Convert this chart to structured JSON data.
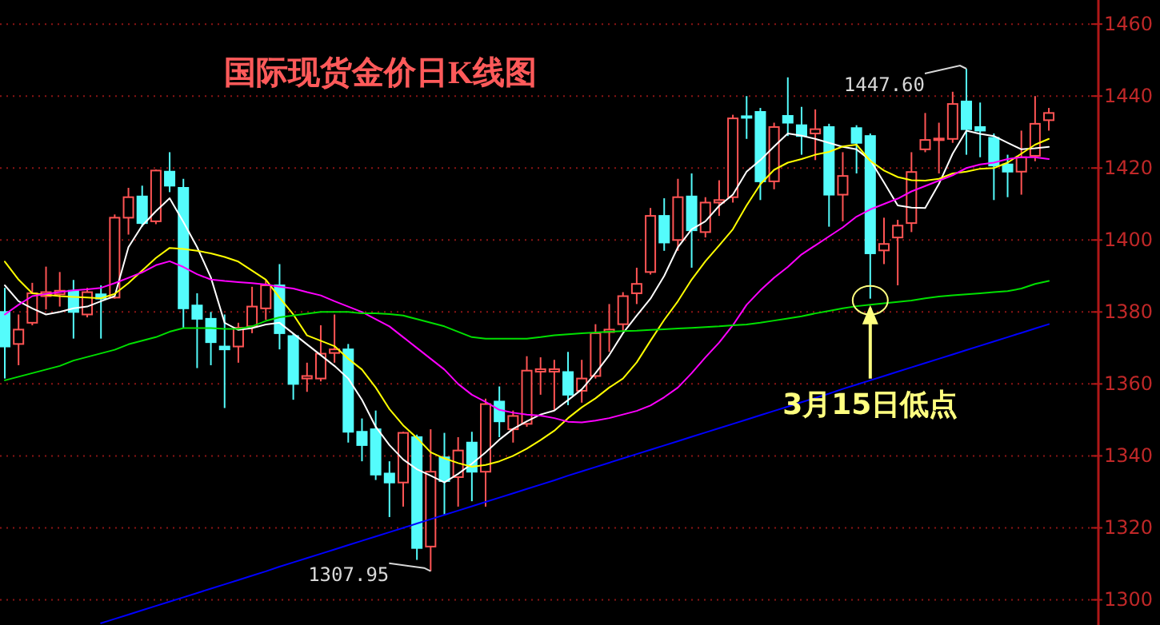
{
  "chart_data": {
    "type": "candlestick",
    "title": "国际现货金价日K线图",
    "categories": [
      null,
      null,
      null,
      null,
      null,
      null,
      null,
      null,
      null,
      null,
      null,
      null,
      null,
      null,
      null,
      null,
      null,
      null,
      null,
      null,
      null,
      null,
      null,
      null,
      null,
      null,
      null,
      null,
      null,
      null,
      null,
      null,
      null,
      null,
      null,
      null,
      null,
      null,
      null,
      null,
      null,
      null,
      null,
      null,
      null,
      null,
      null,
      null,
      null,
      null,
      null,
      null,
      null,
      null,
      null,
      null,
      null,
      null,
      null,
      null,
      null,
      null,
      null,
      null,
      null,
      null,
      null,
      null,
      null,
      null,
      null,
      null,
      null,
      null,
      null,
      null,
      null
    ],
    "ohlc": [
      [
        1380,
        1386.7,
        1361.5,
        1370.4
      ],
      [
        1371.1,
        1379.3,
        1365.2,
        1375.1
      ],
      [
        1377,
        1388.1,
        1376.3,
        1385.2
      ],
      [
        1384.4,
        1392.6,
        1380.7,
        1385.5
      ],
      [
        1384.9,
        1391.1,
        1381.5,
        1385.9
      ],
      [
        1385.9,
        1388.9,
        1372.6,
        1380
      ],
      [
        1379.3,
        1386.7,
        1378.5,
        1385.5
      ],
      [
        1384.9,
        1387.4,
        1372.6,
        1383.7
      ],
      [
        1384,
        1407.1,
        1383.7,
        1406.2
      ],
      [
        1406.2,
        1414.5,
        1401.5,
        1411.9
      ],
      [
        1412.1,
        1415.1,
        1403.7,
        1404.7
      ],
      [
        1405.2,
        1419.6,
        1404.4,
        1419.3
      ],
      [
        1419,
        1424.4,
        1413.3,
        1415.1
      ],
      [
        1414.5,
        1417,
        1375.6,
        1381
      ],
      [
        1381.8,
        1385.2,
        1364.4,
        1378.1
      ],
      [
        1378.1,
        1380,
        1365.2,
        1371.6
      ],
      [
        1370.4,
        1379.3,
        1353.3,
        1369.6
      ],
      [
        1370.4,
        1377,
        1365.9,
        1375.6
      ],
      [
        1376,
        1387,
        1374.1,
        1381.5
      ],
      [
        1381,
        1388.9,
        1377.8,
        1387.4
      ],
      [
        1387.4,
        1393.3,
        1369.6,
        1374.1
      ],
      [
        1373.3,
        1374.1,
        1355.6,
        1360
      ],
      [
        1361.5,
        1365.9,
        1357.8,
        1362.2
      ],
      [
        1361.5,
        1376.3,
        1360.7,
        1368.4
      ],
      [
        1368.6,
        1379.3,
        1365.9,
        1369.6
      ],
      [
        1369.6,
        1371.1,
        1343.7,
        1346.7
      ],
      [
        1346.7,
        1350.4,
        1338.5,
        1343
      ],
      [
        1347.4,
        1352.6,
        1333.3,
        1334.8
      ],
      [
        1335.1,
        1338.5,
        1323,
        1332.6
      ],
      [
        1332.6,
        1346.7,
        1325.9,
        1346.4
      ],
      [
        1345.2,
        1345.9,
        1311.1,
        1314.4
      ],
      [
        1314.8,
        1347.4,
        1307.95,
        1335.6
      ],
      [
        1339.6,
        1346.4,
        1323.7,
        1333
      ],
      [
        1334.1,
        1345.2,
        1325.9,
        1341.5
      ],
      [
        1343.7,
        1346.7,
        1327.4,
        1335.6
      ],
      [
        1335.6,
        1355.9,
        1325.9,
        1354.4
      ],
      [
        1355.1,
        1359.3,
        1345.2,
        1349.6
      ],
      [
        1347.4,
        1352.6,
        1343.7,
        1351.1
      ],
      [
        1348.9,
        1367.7,
        1348.1,
        1363.7
      ],
      [
        1363.4,
        1367.4,
        1357,
        1364.1
      ],
      [
        1363.4,
        1366.7,
        1352.6,
        1364.1
      ],
      [
        1363.3,
        1368.9,
        1354.1,
        1357
      ],
      [
        1358.1,
        1366.7,
        1354.8,
        1361.5
      ],
      [
        1362.2,
        1376.6,
        1361.5,
        1374.1
      ],
      [
        1374.4,
        1382.2,
        1368.9,
        1375.1
      ],
      [
        1376.6,
        1385.5,
        1374.8,
        1384.4
      ],
      [
        1385.2,
        1392.3,
        1382.2,
        1387.8
      ],
      [
        1391.1,
        1408.9,
        1390.4,
        1406.7
      ],
      [
        1406.7,
        1411.6,
        1397,
        1399.3
      ],
      [
        1400,
        1417,
        1397,
        1411.9
      ],
      [
        1412.1,
        1418.5,
        1392.3,
        1402.7
      ],
      [
        1402.2,
        1411.9,
        1400.7,
        1410.4
      ],
      [
        1410.4,
        1416.6,
        1406.7,
        1411.1
      ],
      [
        1411.9,
        1434.8,
        1410.4,
        1433.8
      ],
      [
        1434.4,
        1440,
        1428.1,
        1434
      ],
      [
        1435.6,
        1436.7,
        1411.1,
        1416.3
      ],
      [
        1416.3,
        1432.6,
        1414.1,
        1431.4
      ],
      [
        1434.5,
        1445.2,
        1428.9,
        1432.6
      ],
      [
        1431.9,
        1437,
        1423.7,
        1428.9
      ],
      [
        1429.6,
        1436.3,
        1422.2,
        1430.8
      ],
      [
        1431.4,
        1432.3,
        1403.7,
        1412.6
      ],
      [
        1412.6,
        1424.4,
        1405.2,
        1417.8
      ],
      [
        1431.1,
        1431.9,
        1418.5,
        1427
      ],
      [
        1428.9,
        1429.6,
        1383.7,
        1396.3
      ],
      [
        1397.1,
        1406.2,
        1393.3,
        1398.9
      ],
      [
        1400.7,
        1405.6,
        1387.4,
        1404
      ],
      [
        1404.7,
        1424.4,
        1402.2,
        1418.9
      ],
      [
        1425.2,
        1435.3,
        1424.4,
        1427.8
      ],
      [
        1428,
        1432.6,
        1418.5,
        1428.2
      ],
      [
        1428.1,
        1441.2,
        1427,
        1437.8
      ],
      [
        1438.5,
        1447.6,
        1423.7,
        1430.8
      ],
      [
        1431.4,
        1438.2,
        1423,
        1430.4
      ],
      [
        1428.4,
        1429.6,
        1411.1,
        1420.7
      ],
      [
        1421,
        1423.7,
        1411.9,
        1419
      ],
      [
        1419,
        1430.4,
        1412.6,
        1423
      ],
      [
        1423.4,
        1440,
        1421.9,
        1432.3
      ],
      [
        1433.3,
        1436.7,
        1430.4,
        1435.3
      ]
    ],
    "colors": [
      "#54fcfc",
      "#ff5454",
      "#ff5454",
      "#ff5454",
      "#ff5454",
      "#54fcfc",
      "#ff5454",
      "#54fcfc",
      "#ff5454",
      "#ff5454",
      "#54fcfc",
      "#ff5454",
      "#54fcfc",
      "#54fcfc",
      "#54fcfc",
      "#54fcfc",
      "#54fcfc",
      "#ff5454",
      "#ff5454",
      "#ff5454",
      "#54fcfc",
      "#54fcfc",
      "#ff5454",
      "#ff5454",
      "#ff5454",
      "#54fcfc",
      "#54fcfc",
      "#54fcfc",
      "#54fcfc",
      "#ff5454",
      "#54fcfc",
      "#ff5454",
      "#54fcfc",
      "#ff5454",
      "#54fcfc",
      "#ff5454",
      "#54fcfc",
      "#ff5454",
      "#ff5454",
      "#ff5454",
      "#ff5454",
      "#54fcfc",
      "#ff5454",
      "#ff5454",
      "#ff5454",
      "#ff5454",
      "#ff5454",
      "#ff5454",
      "#54fcfc",
      "#ff5454",
      "#54fcfc",
      "#ff5454",
      "#ff5454",
      "#ff5454",
      "#54fcfc",
      "#54fcfc",
      "#ff5454",
      "#54fcfc",
      "#54fcfc",
      "#ff5454",
      "#54fcfc",
      "#ff5454",
      "#54fcfc",
      "#54fcfc",
      "#ff5454",
      "#ff5454",
      "#ff5454",
      "#ff5454",
      "#ff5454",
      "#ff5454",
      "#54fcfc",
      "#54fcfc",
      "#54fcfc",
      "#54fcfc",
      "#ff5454",
      "#ff5454",
      "#ff5454"
    ],
    "series": [
      {
        "type": "line",
        "color": "#ffffff",
        "values": [
          1387.4,
          1383,
          1381,
          1379.3,
          1380,
          1381,
          1381.5,
          1383,
          1384.4,
          1398,
          1404,
          1408,
          1411.6,
          1405,
          1398,
          1389.6,
          1377,
          1375,
          1375.5,
          1376.5,
          1377,
          1374,
          1371,
          1368,
          1365,
          1361.5,
          1355.6,
          1348.1,
          1343,
          1339,
          1336.3,
          1334.5,
          1332.6,
          1335,
          1337.8,
          1341,
          1344.5,
          1347.5,
          1349.6,
          1351.5,
          1352.6,
          1355.5,
          1358.5,
          1363,
          1368,
          1374.1,
          1379,
          1383.7,
          1390,
          1398,
          1403,
          1405.2,
          1409.5,
          1412.6,
          1419,
          1422.2,
          1426,
          1429.6,
          1429,
          1428.1,
          1427,
          1425.9,
          1425.2,
          1422.2,
          1416,
          1409.6,
          1409,
          1408.9,
          1415.6,
          1424,
          1430.4,
          1429.5,
          1428.9,
          1427,
          1425.2,
          1425.5,
          1425.9
        ]
      },
      {
        "type": "line",
        "color": "#ffff00",
        "values": [
          1394,
          1389,
          1385.2,
          1384.8,
          1384.4,
          1384.2,
          1384,
          1383.8,
          1385,
          1388,
          1391.5,
          1395,
          1397.8,
          1397.5,
          1397,
          1396.3,
          1395.3,
          1394,
          1391.5,
          1389,
          1384,
          1379.3,
          1373.5,
          1372,
          1370.5,
          1367,
          1364,
          1359,
          1353,
          1348.5,
          1345,
          1341,
          1339.3,
          1338,
          1337,
          1337.5,
          1338.5,
          1340,
          1342,
          1344.4,
          1347,
          1350.5,
          1353.5,
          1356,
          1359,
          1361.5,
          1366,
          1372,
          1377.8,
          1383,
          1389,
          1394.1,
          1398.5,
          1403,
          1409.6,
          1415.5,
          1419.5,
          1421.5,
          1422.5,
          1423.7,
          1424.5,
          1426,
          1426.5,
          1422,
          1419.3,
          1417.5,
          1416.6,
          1416.5,
          1417,
          1418.5,
          1419,
          1419.8,
          1420,
          1421.5,
          1424,
          1426.5,
          1428.1
        ]
      },
      {
        "type": "line",
        "color": "#ff00ff",
        "values": [
          1379.3,
          1382,
          1384.4,
          1385,
          1385.5,
          1386,
          1386.3,
          1386.7,
          1388,
          1389.5,
          1391,
          1393,
          1394.1,
          1392.5,
          1390.5,
          1389,
          1388.6,
          1388.3,
          1388,
          1387.6,
          1387,
          1386.5,
          1385.5,
          1384.6,
          1383,
          1381.5,
          1380,
          1378,
          1376,
          1373,
          1370,
          1367,
          1364,
          1360,
          1357,
          1355,
          1352.8,
          1352,
          1351.5,
          1351.2,
          1350.5,
          1349.5,
          1349.3,
          1349.8,
          1350.5,
          1351.5,
          1352.5,
          1354,
          1356.3,
          1359,
          1363,
          1367.4,
          1371.5,
          1376.3,
          1382,
          1386,
          1389.5,
          1392.5,
          1396,
          1398.5,
          1401,
          1403.5,
          1406.5,
          1408.5,
          1410,
          1411.5,
          1413.5,
          1415,
          1416.5,
          1418,
          1420,
          1421,
          1421.5,
          1422.5,
          1423,
          1423,
          1422.5
        ]
      },
      {
        "type": "line",
        "color": "#00e000",
        "values": [
          1361,
          1362,
          1363,
          1364,
          1365,
          1366.5,
          1367.5,
          1368.5,
          1369.5,
          1371,
          1372,
          1373,
          1374.5,
          1375.5,
          1375.5,
          1375.5,
          1375.3,
          1375.3,
          1376,
          1377.5,
          1378.5,
          1379,
          1379.5,
          1380,
          1380,
          1380,
          1379.6,
          1379.6,
          1379.4,
          1379,
          1378,
          1377,
          1376,
          1374.5,
          1373,
          1372.6,
          1372.6,
          1372.6,
          1372.6,
          1373,
          1373.5,
          1373.8,
          1374.1,
          1374.3,
          1374.5,
          1374.7,
          1374.8,
          1375,
          1375.2,
          1375.4,
          1375.6,
          1375.8,
          1376,
          1376.3,
          1376.5,
          1377,
          1377.6,
          1378.2,
          1378.8,
          1379.6,
          1380.3,
          1381,
          1381.6,
          1382,
          1382.4,
          1382.8,
          1383.2,
          1383.8,
          1384.3,
          1384.6,
          1384.9,
          1385.2,
          1385.5,
          1385.8,
          1386.5,
          1387.8,
          1388.6
        ]
      },
      {
        "type": "line",
        "color": "#0000ff",
        "values": [
          null,
          null,
          null,
          null,
          null,
          null,
          null,
          1293.5,
          1294.7,
          1295.9,
          1297.1,
          1298.3,
          1299.5,
          1300.7,
          1301.9,
          1303.1,
          1304.3,
          1305.5,
          1306.7,
          1307.9,
          1309.2,
          1310.4,
          1311.6,
          1312.8,
          1314,
          1315.2,
          1316.4,
          1317.6,
          1318.8,
          1320,
          1321.2,
          1322.4,
          1323.6,
          1324.8,
          1326,
          1327.2,
          1328.4,
          1329.6,
          1330.8,
          1332,
          1333.2,
          1334.5,
          1335.7,
          1336.9,
          1338.1,
          1339.3,
          1340.5,
          1341.7,
          1342.9,
          1344.1,
          1345.3,
          1346.5,
          1347.7,
          1348.9,
          1350.1,
          1351.3,
          1352.5,
          1353.7,
          1354.9,
          1356.1,
          1357.3,
          1358.6,
          1359.8,
          1361,
          1362.2,
          1363.4,
          1364.6,
          1365.8,
          1367,
          1368.2,
          1369.4,
          1370.6,
          1371.8,
          1373,
          1374.2,
          1375.4,
          1376.6
        ]
      }
    ],
    "annotations": [
      "1447.60",
      "1307.95",
      {
        "text": "3月15日低点",
        "y": 1383.7
      }
    ],
    "ylim": [
      1293,
      1466.7
    ],
    "yticks": [
      1300,
      1320,
      1340,
      1360,
      1380,
      1400,
      1420,
      1440,
      1460
    ],
    "grid": "y",
    "tick_labels": "y"
  }
}
